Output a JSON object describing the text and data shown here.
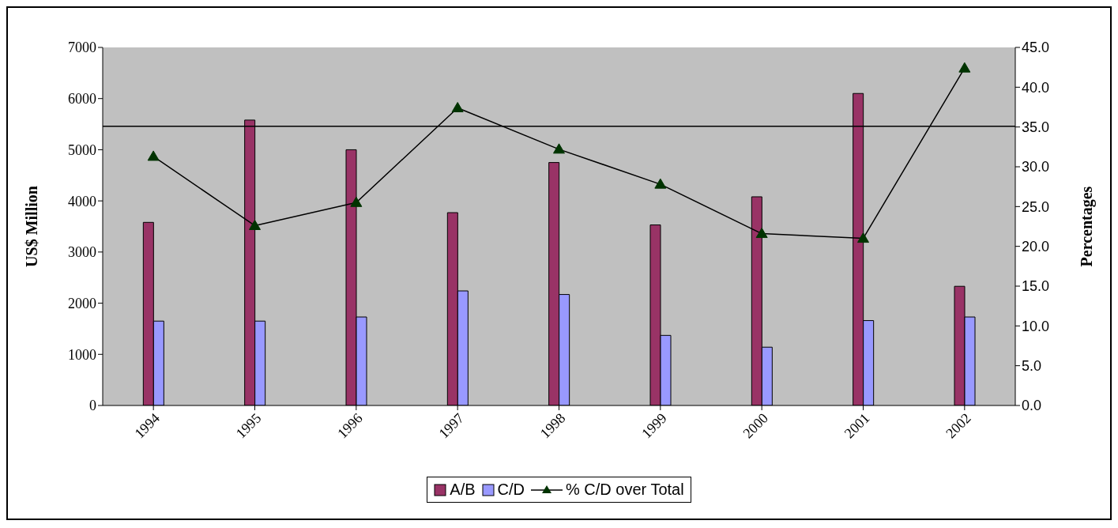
{
  "chart_data": {
    "type": "bar",
    "categories": [
      "1994",
      "1995",
      "1996",
      "1997",
      "1998",
      "1999",
      "2000",
      "2001",
      "2002"
    ],
    "ylabel": "US$ Million",
    "y2label": "Percentages",
    "series": [
      {
        "name": "A/B",
        "color": "#993366",
        "values": [
          3580,
          5580,
          5000,
          3770,
          4750,
          3530,
          4080,
          6100,
          2330
        ]
      },
      {
        "name": "C/D",
        "color": "#9999ff",
        "values": [
          1650,
          1650,
          1730,
          2240,
          2170,
          1370,
          1140,
          1660,
          1730
        ]
      },
      {
        "name": "% C/D over Total",
        "type": "line",
        "axis": "y2",
        "color": "#003300",
        "marker": "triangle",
        "values": [
          31.3,
          22.6,
          25.5,
          37.4,
          32.2,
          27.8,
          21.6,
          21.0,
          42.4
        ]
      }
    ],
    "ylim": [
      0,
      7000
    ],
    "yticks": [
      0,
      1000,
      2000,
      3000,
      4000,
      5000,
      6000,
      7000
    ],
    "y2lim": [
      0,
      45
    ],
    "y2ticks": [
      {
        "value": 0,
        "label": "0.0"
      },
      {
        "value": 5,
        "label": "5.0"
      },
      {
        "value": 10,
        "label": "10.0"
      },
      {
        "value": 15,
        "label": "15.0"
      },
      {
        "value": 20,
        "label": "20.0"
      },
      {
        "value": 25,
        "label": "25.0"
      },
      {
        "value": 30,
        "label": "30.0"
      },
      {
        "value": 35,
        "label": "35.0"
      },
      {
        "value": 40,
        "label": "40.0"
      },
      {
        "value": 45,
        "label": "45.0"
      }
    ],
    "ref_lines": [
      {
        "axis": "y2",
        "value": 35.1,
        "color": "#000000"
      }
    ],
    "legend": "bottom",
    "grid": false
  }
}
